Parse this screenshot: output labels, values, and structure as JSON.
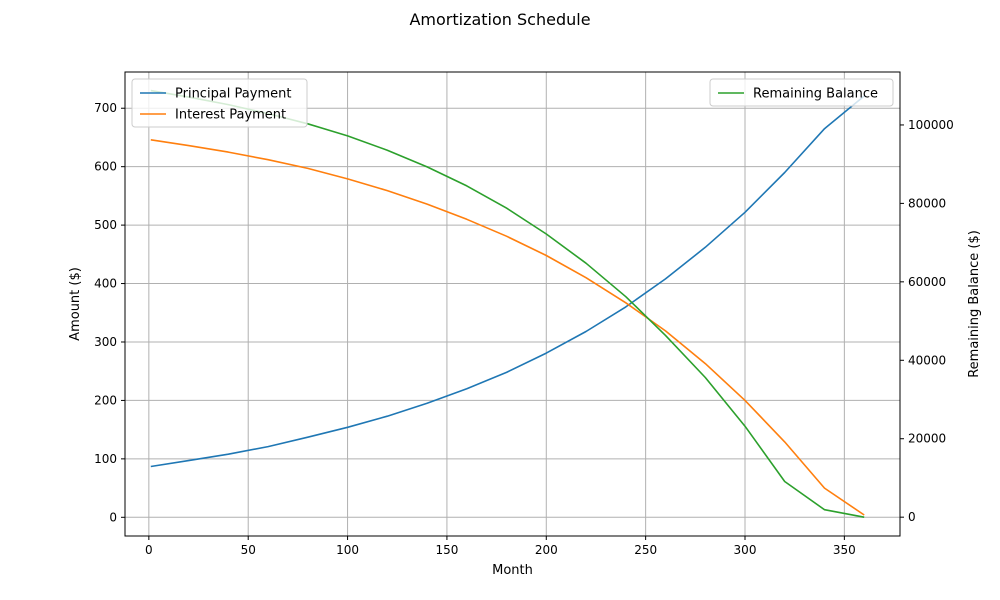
{
  "chart_data": {
    "type": "line",
    "title": "Amortization Schedule",
    "xlabel": "Month",
    "ylabel": "Amount ($)",
    "y2label": "Remaining Balance ($)",
    "xlim": [
      -12,
      378
    ],
    "ylim": [
      -32,
      762
    ],
    "y2lim": [
      -4800,
      113500
    ],
    "x_ticks": [
      0,
      50,
      100,
      150,
      200,
      250,
      300,
      350
    ],
    "y_ticks": [
      0,
      100,
      200,
      300,
      400,
      500,
      600,
      700
    ],
    "y2_ticks": [
      0,
      20000,
      40000,
      60000,
      80000,
      100000
    ],
    "grid": true,
    "legend_left": "top-left",
    "legend_right": "top-right",
    "colors": {
      "principal": "#1f77b4",
      "interest": "#ff7f0e",
      "balance": "#2ca02c"
    },
    "x": [
      1,
      20,
      40,
      60,
      80,
      100,
      120,
      140,
      160,
      180,
      200,
      220,
      240,
      260,
      280,
      300,
      320,
      340,
      360
    ],
    "series": [
      {
        "name": "Principal Payment",
        "axis": "left",
        "color": "#1f77b4",
        "values": [
          87,
          97,
          108,
          121,
          137,
          154,
          173,
          195,
          220,
          248,
          281,
          318,
          360,
          408,
          462,
          522,
          590,
          665,
          721
        ]
      },
      {
        "name": "Interest Payment",
        "axis": "left",
        "color": "#ff7f0e",
        "values": [
          646,
          636,
          625,
          612,
          597,
          579,
          559,
          536,
          510,
          481,
          448,
          410,
          367,
          319,
          263,
          200,
          129,
          50,
          4
        ]
      },
      {
        "name": "Remaining Balance",
        "axis": "right",
        "color": "#2ca02c",
        "values": [
          108750,
          107100,
          105200,
          102900,
          100300,
          97200,
          93550,
          89300,
          84450,
          78800,
          72200,
          64750,
          56200,
          46350,
          35600,
          23200,
          9100,
          1900,
          0
        ]
      }
    ]
  }
}
